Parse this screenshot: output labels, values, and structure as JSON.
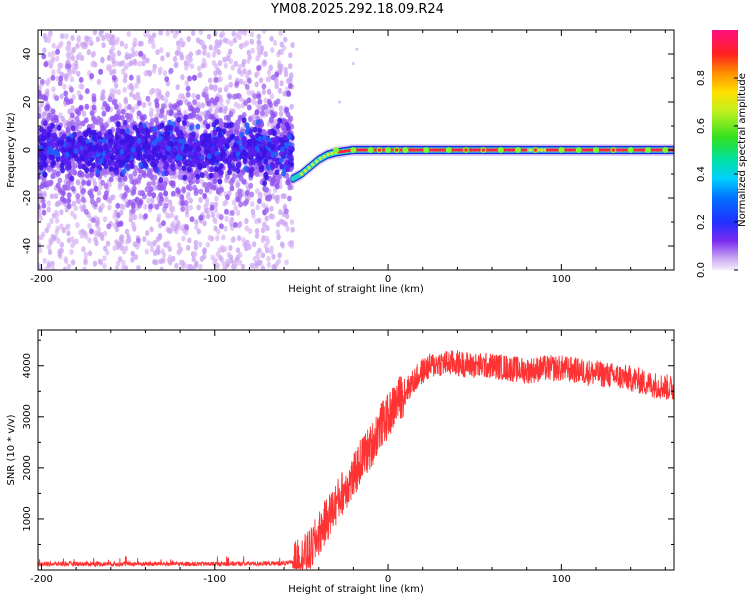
{
  "title": "YM08.2025.292.18.09.R24",
  "spectrogram": {
    "xlabel": "Height of straight line (km)",
    "ylabel": "Frequency (Hz)",
    "xlim": [
      -202,
      165
    ],
    "ylim": [
      -50,
      50
    ],
    "xticks": [
      -200,
      -100,
      0,
      100
    ],
    "yticks": [
      40,
      20,
      0,
      -20,
      -40
    ],
    "colorbar_label": "Normalized spectral amplitude",
    "colorbar_ticks": [
      "0.0",
      "0.2",
      "0.4",
      "0.6",
      "0.8"
    ],
    "colorbar_values": [
      0.0,
      0.2,
      0.4,
      0.6,
      0.8
    ],
    "colorbar_range": [
      0,
      1
    ]
  },
  "chart_data": [
    {
      "type": "heatmap",
      "title": "YM08.2025.292.18.09.R24",
      "xlabel": "Height of straight line (km)",
      "ylabel": "Frequency (Hz)",
      "xlim": [
        -202,
        165
      ],
      "ylim": [
        -50,
        50
      ],
      "description_values": {
        "noise_region_x": [
          -202,
          -55
        ],
        "signal_line_frequency_hz": 0,
        "signal_onset_x": -55,
        "signal_settle_x": -30,
        "signal_frequency_at_onset_hz": -12
      },
      "signal_trace": {
        "x": [
          -55,
          -50,
          -45,
          -40,
          -35,
          -30,
          -20,
          -10,
          0,
          20,
          40,
          60,
          80,
          100,
          120,
          140,
          165
        ],
        "y": [
          -12,
          -10,
          -7,
          -4,
          -2,
          -1,
          0,
          0,
          0,
          0,
          0,
          0,
          0,
          0,
          0,
          0,
          0
        ]
      }
    },
    {
      "type": "line",
      "xlabel": "Height of straight line (km)",
      "ylabel": "SNR (10 * v/v)",
      "xlim": [
        -202,
        165
      ],
      "ylim": [
        0,
        4700
      ],
      "xticks": [
        -200,
        -100,
        0,
        100
      ],
      "yticks": [
        1000,
        2000,
        3000,
        4000
      ],
      "color": "#ff3333",
      "series": [
        {
          "name": "SNR",
          "x": [
            -202,
            -150,
            -100,
            -60,
            -52,
            -45,
            -40,
            -35,
            -30,
            -25,
            -20,
            -15,
            -10,
            -5,
            0,
            5,
            10,
            15,
            20,
            25,
            30,
            40,
            50,
            60,
            70,
            80,
            90,
            100,
            110,
            120,
            130,
            140,
            150,
            165
          ],
          "y": [
            120,
            120,
            120,
            130,
            150,
            350,
            700,
            1000,
            1300,
            1600,
            1800,
            2200,
            2400,
            2800,
            3000,
            3300,
            3500,
            3700,
            3900,
            4000,
            4050,
            4050,
            4000,
            4000,
            3950,
            3900,
            3950,
            3950,
            3900,
            3850,
            3800,
            3750,
            3650,
            3550
          ]
        }
      ]
    }
  ],
  "snr": {
    "xlabel": "Height of straight line (km)",
    "ylabel": "SNR (10 * v/v)",
    "xticks": [
      -200,
      -100,
      0,
      100
    ],
    "yticks": [
      1000,
      2000,
      3000,
      4000
    ]
  }
}
